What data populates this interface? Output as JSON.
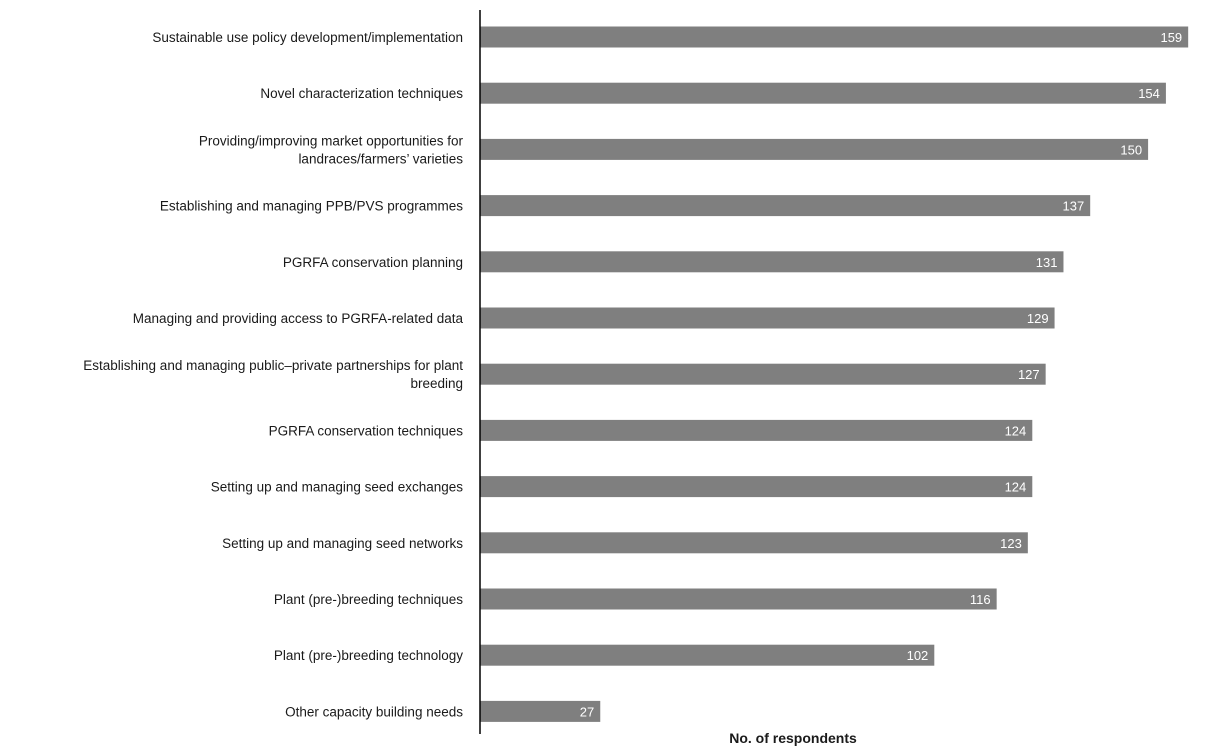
{
  "chart_data": {
    "type": "bar",
    "orientation": "horizontal",
    "categories": [
      "Sustainable use policy development/implementation",
      "Novel characterization techniques",
      "Providing/improving market opportunities for landraces/farmers’ varieties",
      "Establishing and managing PPB/PVS programmes",
      "PGRFA conservation planning",
      "Managing and providing access to PGRFA-related data",
      "Establishing and managing public–private partnerships for plant breeding",
      "PGRFA conservation techniques",
      "Setting up and managing seed exchanges",
      "Setting up and managing seed networks",
      "Plant (pre-)breeding techniques",
      "Plant (pre-)breeding technology",
      "Other capacity building needs"
    ],
    "category_lines": [
      [
        "Sustainable use policy development/implementation"
      ],
      [
        "Novel characterization techniques"
      ],
      [
        "Providing/improving market opportunities for",
        "landraces/farmers’ varieties"
      ],
      [
        "Establishing and managing PPB/PVS programmes"
      ],
      [
        "PGRFA conservation planning"
      ],
      [
        "Managing and providing access to PGRFA-related data"
      ],
      [
        "Establishing and managing public–private partnerships for plant",
        "breeding"
      ],
      [
        "PGRFA conservation techniques"
      ],
      [
        "Setting up and managing seed exchanges"
      ],
      [
        "Setting up and managing seed networks"
      ],
      [
        "Plant (pre-)breeding techniques"
      ],
      [
        "Plant (pre-)breeding technology"
      ],
      [
        "Other capacity building needs"
      ]
    ],
    "values": [
      159,
      154,
      150,
      137,
      131,
      129,
      127,
      124,
      124,
      123,
      116,
      102,
      27
    ],
    "title": "",
    "xlabel": "No. of respondents",
    "ylabel": "",
    "xlim": [
      0,
      163
    ],
    "grid": false,
    "legend": "none",
    "bar_color": "#7f7f7f",
    "value_label_color": "#ffffff"
  }
}
